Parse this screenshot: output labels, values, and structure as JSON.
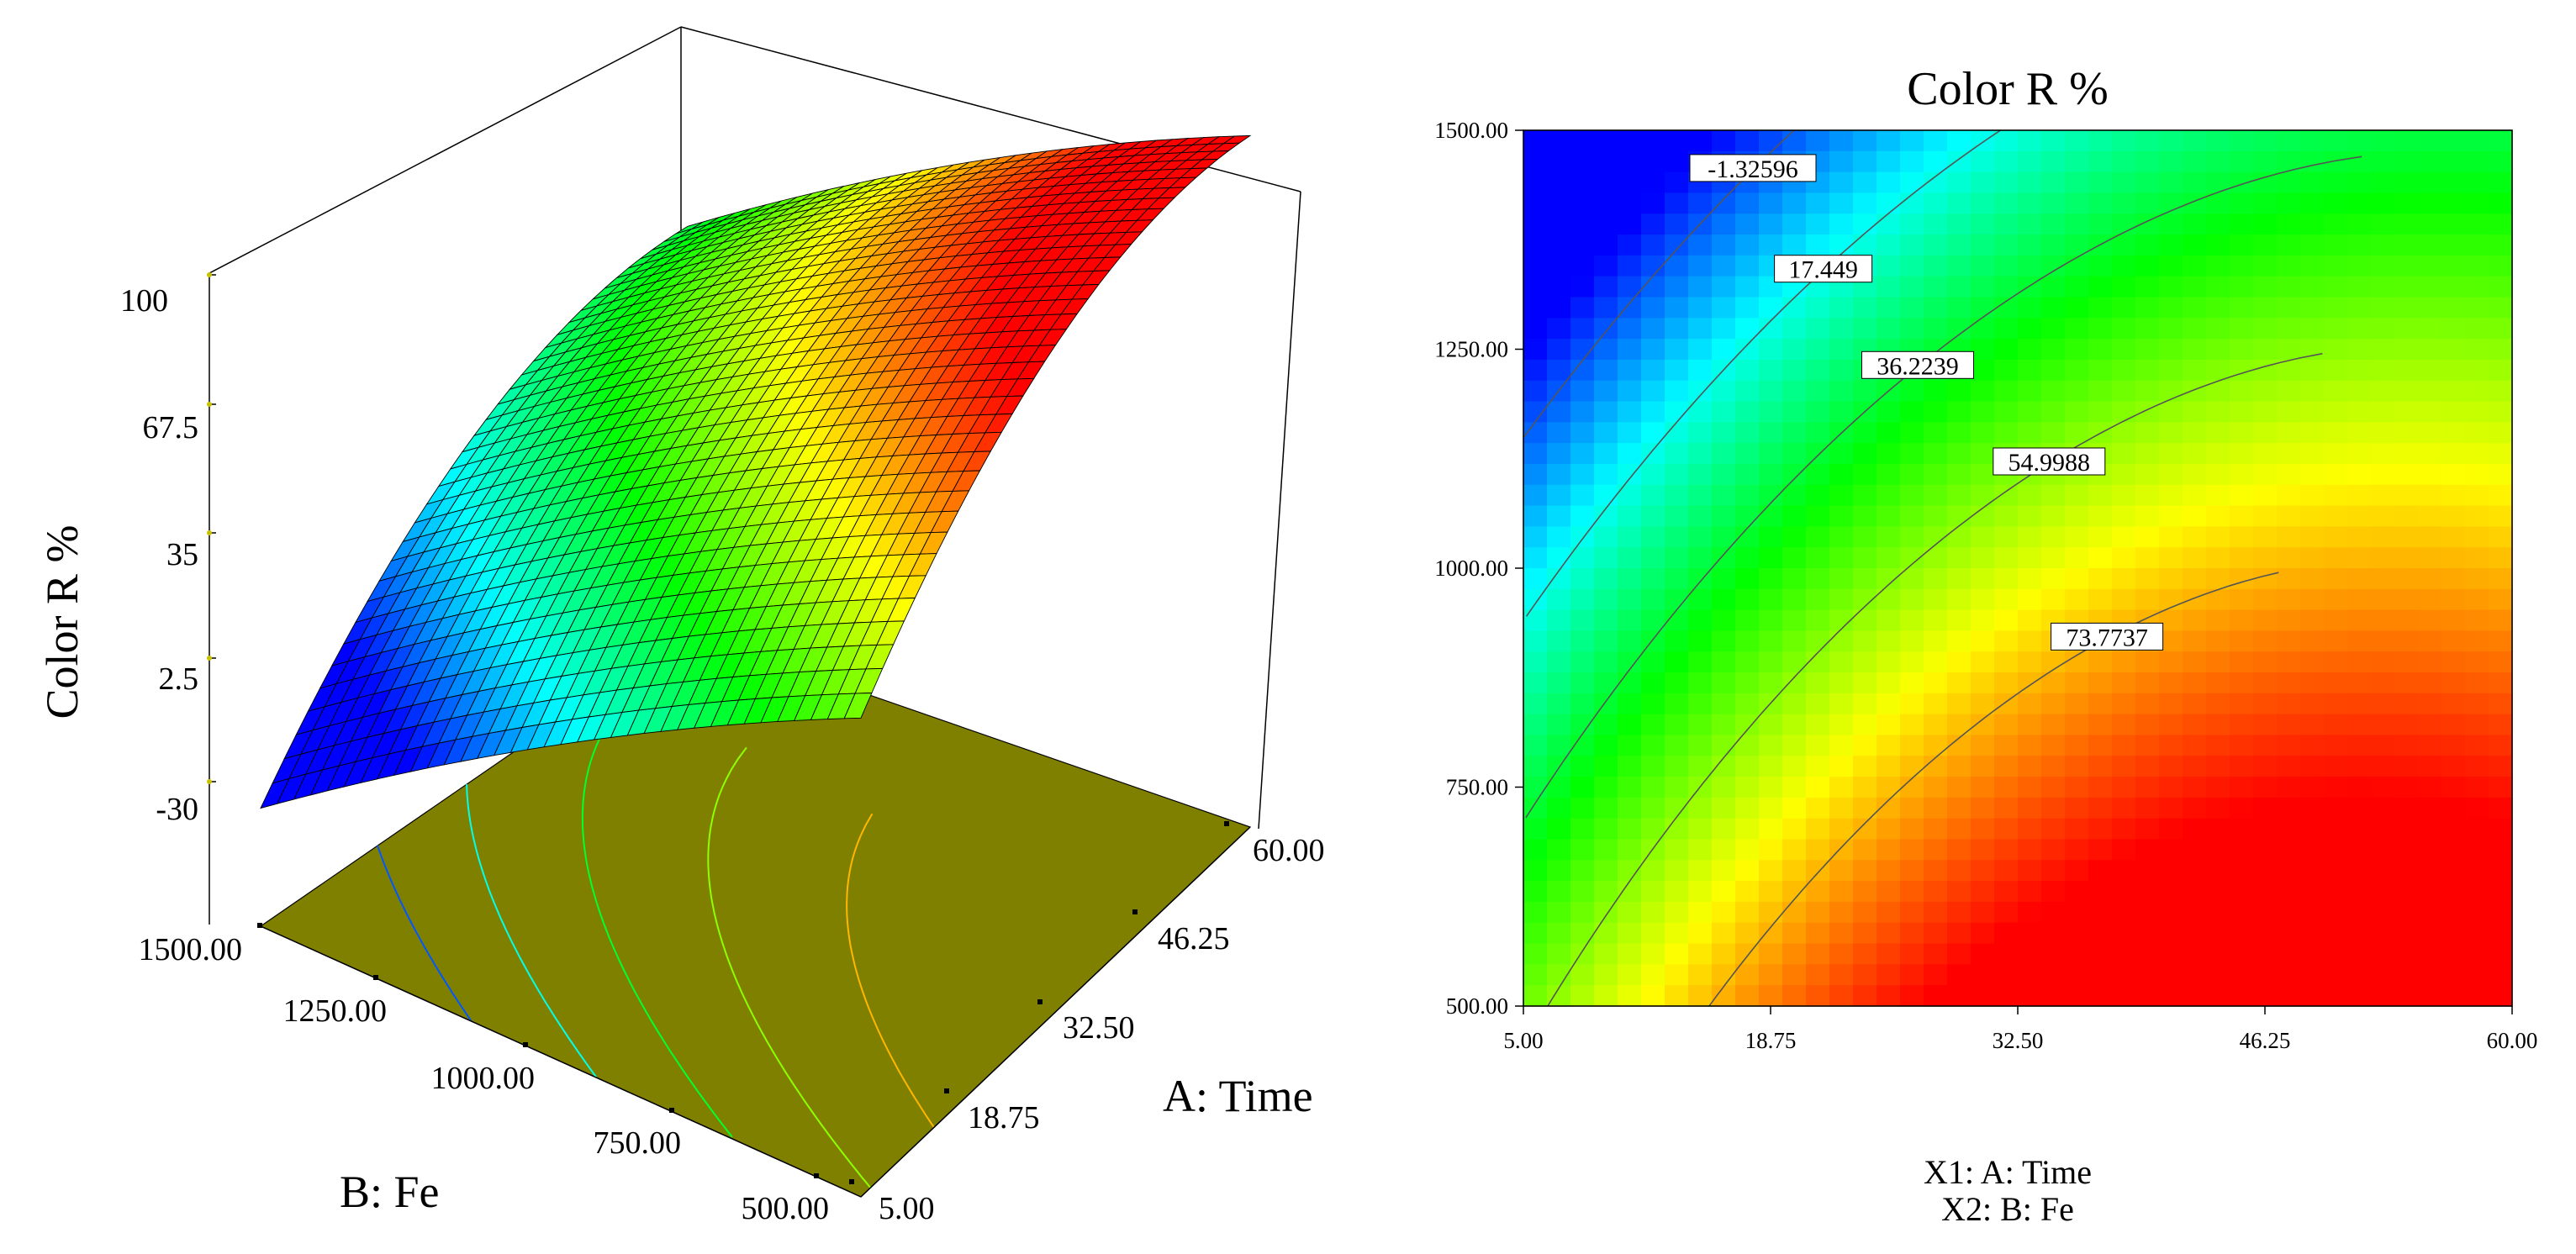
{
  "colors": {
    "floor": "#808000",
    "box_line": "#000000",
    "contour_line": "#555555",
    "label_bg": "#ffffff"
  },
  "surface_plot": {
    "z_label": "Color R %",
    "z_ticks": [
      "100",
      "67.5",
      "35",
      "2.5",
      "-30"
    ],
    "z_range": [
      -30,
      100
    ],
    "a_label": "A: Time",
    "a_ticks": [
      "60.00",
      "46.25",
      "32.50",
      "18.75",
      "5.00"
    ],
    "b_label": "B: Fe",
    "b_ticks": [
      "1500.00",
      "1250.00",
      "1000.00",
      "750.00",
      "500.00"
    ]
  },
  "chart_data": [
    {
      "type": "surface",
      "title": "",
      "xlabel": "A: Time",
      "ylabel": "B: Fe",
      "zlabel": "Color R %",
      "x_range": [
        5,
        60
      ],
      "y_range": [
        500,
        1500
      ],
      "z_range": [
        -30,
        100
      ],
      "surface_corners": [
        {
          "x": 5,
          "y": 1500,
          "z": -12
        },
        {
          "x": 60,
          "y": 1500,
          "z": 58
        },
        {
          "x": 60,
          "y": 500,
          "z": 88
        },
        {
          "x": 5,
          "y": 500,
          "z": 48
        }
      ]
    },
    {
      "type": "heatmap",
      "title": "Color R %",
      "xlabel": "X1: A: Time",
      "ylabel": "X2: B: Fe",
      "x_range": [
        5,
        60
      ],
      "y_range": [
        500,
        1500
      ],
      "x_ticks": [
        "5.00",
        "18.75",
        "32.50",
        "46.25",
        "60.00"
      ],
      "y_ticks": [
        "1500.00",
        "1250.00",
        "1000.00",
        "750.00",
        "500.00"
      ],
      "contours": [
        {
          "level": -1.32596,
          "label": "-1.32596"
        },
        {
          "level": 17.449,
          "label": "17.449"
        },
        {
          "level": 36.2239,
          "label": "36.2239"
        },
        {
          "level": 54.9988,
          "label": "54.9988"
        },
        {
          "level": 73.7737,
          "label": "73.7737"
        }
      ],
      "color_scale": {
        "min": -10,
        "max": 92,
        "colors": [
          "#0000ff",
          "#00ffff",
          "#00ff00",
          "#ffff00",
          "#ff0000"
        ]
      }
    }
  ]
}
